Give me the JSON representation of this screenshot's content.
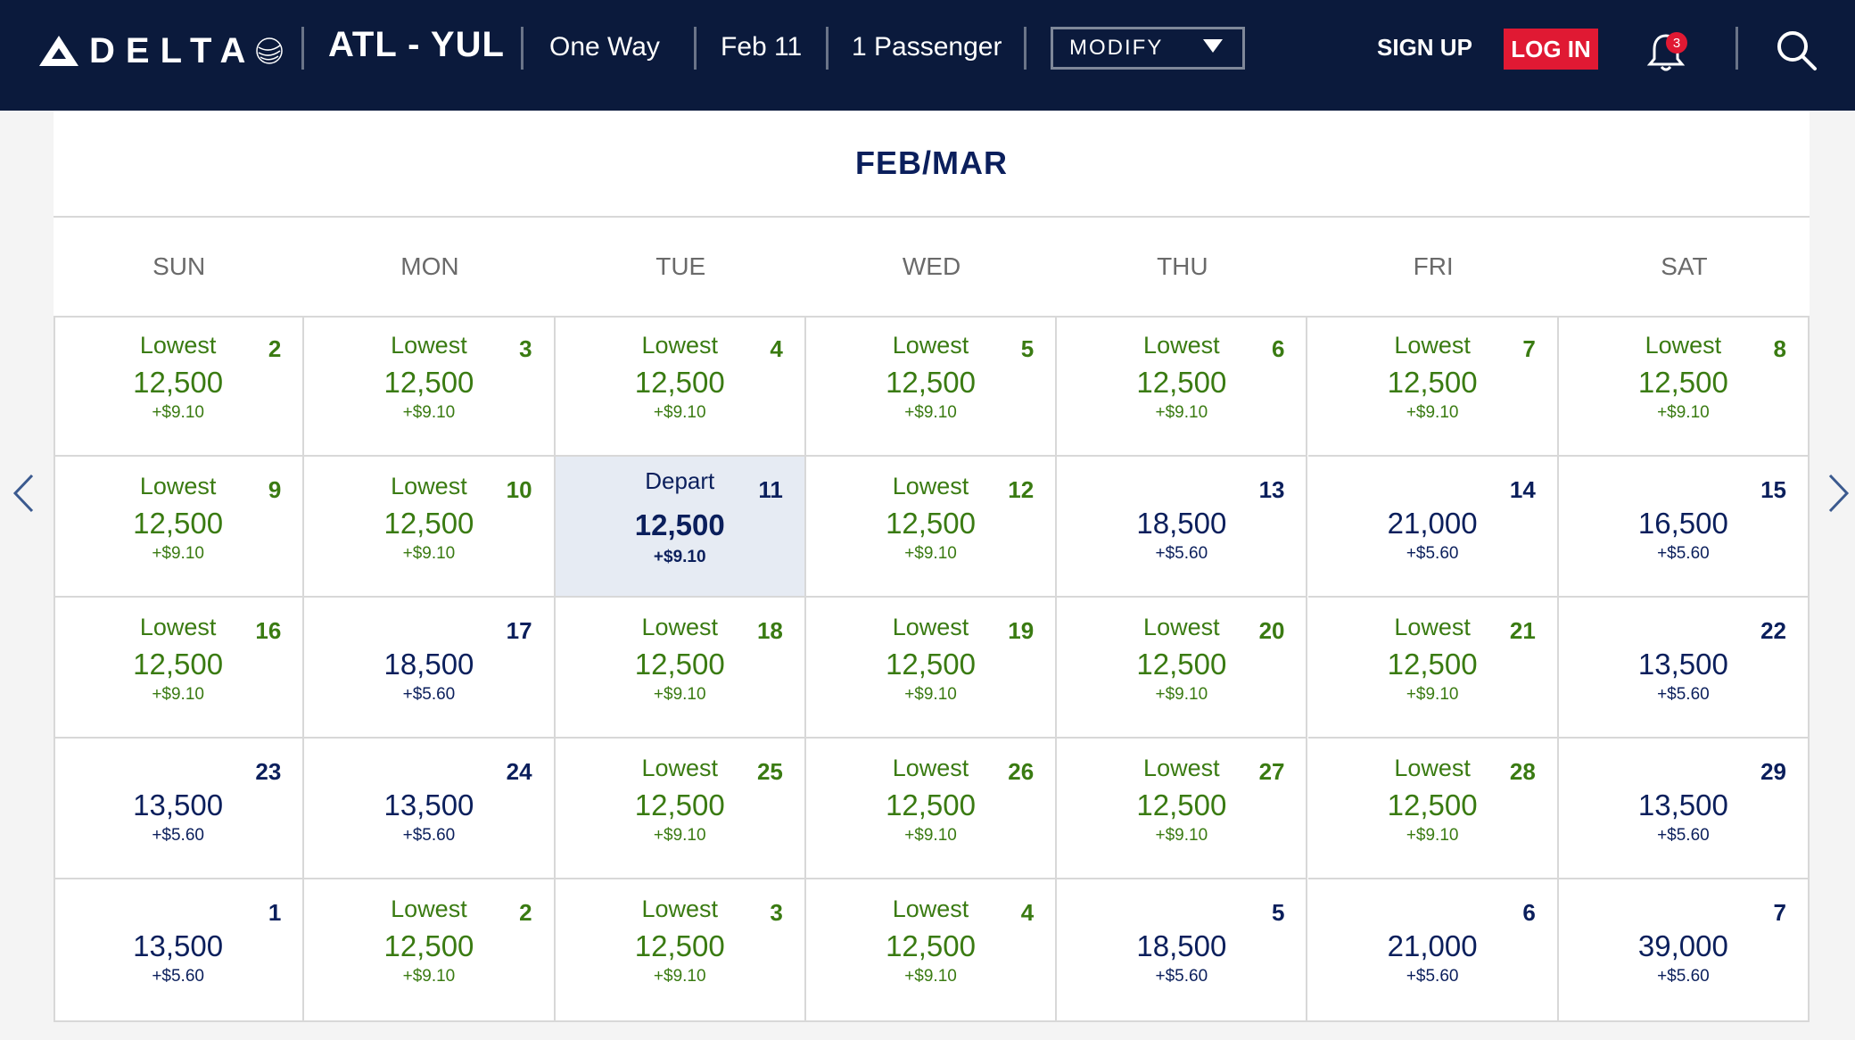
{
  "header": {
    "brand": "DELTA",
    "route": "ATL - YUL",
    "trip_type": "One Way",
    "date": "Feb 11",
    "passengers": "1 Passenger",
    "modify_label": "MODIFY",
    "sign_up": "SIGN UP",
    "log_in": "LOG IN",
    "notification_count": "3",
    "colors": {
      "navy": "#0b1a3c",
      "red": "#e01933"
    }
  },
  "calendar": {
    "month": "FEB/MAR",
    "days_of_week": [
      "SUN",
      "MON",
      "TUE",
      "WED",
      "THU",
      "FRI",
      "SAT"
    ],
    "weeks": [
      [
        {
          "day": "2",
          "tag": "Lowest",
          "price": "12,500",
          "fee": "+$9.10"
        },
        {
          "day": "3",
          "tag": "Lowest",
          "price": "12,500",
          "fee": "+$9.10"
        },
        {
          "day": "4",
          "tag": "Lowest",
          "price": "12,500",
          "fee": "+$9.10"
        },
        {
          "day": "5",
          "tag": "Lowest",
          "price": "12,500",
          "fee": "+$9.10"
        },
        {
          "day": "6",
          "tag": "Lowest",
          "price": "12,500",
          "fee": "+$9.10"
        },
        {
          "day": "7",
          "tag": "Lowest",
          "price": "12,500",
          "fee": "+$9.10"
        },
        {
          "day": "8",
          "tag": "Lowest",
          "price": "12,500",
          "fee": "+$9.10"
        }
      ],
      [
        {
          "day": "9",
          "tag": "Lowest",
          "price": "12,500",
          "fee": "+$9.10"
        },
        {
          "day": "10",
          "tag": "Lowest",
          "price": "12,500",
          "fee": "+$9.10"
        },
        {
          "day": "11",
          "tag": "Depart",
          "price": "12,500",
          "fee": "+$9.10",
          "selected": true
        },
        {
          "day": "12",
          "tag": "Lowest",
          "price": "12,500",
          "fee": "+$9.10"
        },
        {
          "day": "13",
          "tag": "",
          "price": "18,500",
          "fee": "+$5.60"
        },
        {
          "day": "14",
          "tag": "",
          "price": "21,000",
          "fee": "+$5.60"
        },
        {
          "day": "15",
          "tag": "",
          "price": "16,500",
          "fee": "+$5.60"
        }
      ],
      [
        {
          "day": "16",
          "tag": "Lowest",
          "price": "12,500",
          "fee": "+$9.10"
        },
        {
          "day": "17",
          "tag": "",
          "price": "18,500",
          "fee": "+$5.60"
        },
        {
          "day": "18",
          "tag": "Lowest",
          "price": "12,500",
          "fee": "+$9.10"
        },
        {
          "day": "19",
          "tag": "Lowest",
          "price": "12,500",
          "fee": "+$9.10"
        },
        {
          "day": "20",
          "tag": "Lowest",
          "price": "12,500",
          "fee": "+$9.10"
        },
        {
          "day": "21",
          "tag": "Lowest",
          "price": "12,500",
          "fee": "+$9.10"
        },
        {
          "day": "22",
          "tag": "",
          "price": "13,500",
          "fee": "+$5.60"
        }
      ],
      [
        {
          "day": "23",
          "tag": "",
          "price": "13,500",
          "fee": "+$5.60"
        },
        {
          "day": "24",
          "tag": "",
          "price": "13,500",
          "fee": "+$5.60"
        },
        {
          "day": "25",
          "tag": "Lowest",
          "price": "12,500",
          "fee": "+$9.10"
        },
        {
          "day": "26",
          "tag": "Lowest",
          "price": "12,500",
          "fee": "+$9.10"
        },
        {
          "day": "27",
          "tag": "Lowest",
          "price": "12,500",
          "fee": "+$9.10"
        },
        {
          "day": "28",
          "tag": "Lowest",
          "price": "12,500",
          "fee": "+$9.10"
        },
        {
          "day": "29",
          "tag": "",
          "price": "13,500",
          "fee": "+$5.60"
        }
      ],
      [
        {
          "day": "1",
          "tag": "",
          "price": "13,500",
          "fee": "+$5.60"
        },
        {
          "day": "2",
          "tag": "Lowest",
          "price": "12,500",
          "fee": "+$9.10"
        },
        {
          "day": "3",
          "tag": "Lowest",
          "price": "12,500",
          "fee": "+$9.10"
        },
        {
          "day": "4",
          "tag": "Lowest",
          "price": "12,500",
          "fee": "+$9.10"
        },
        {
          "day": "5",
          "tag": "",
          "price": "18,500",
          "fee": "+$5.60"
        },
        {
          "day": "6",
          "tag": "",
          "price": "21,000",
          "fee": "+$5.60"
        },
        {
          "day": "7",
          "tag": "",
          "price": "39,000",
          "fee": "+$5.60"
        }
      ]
    ]
  }
}
